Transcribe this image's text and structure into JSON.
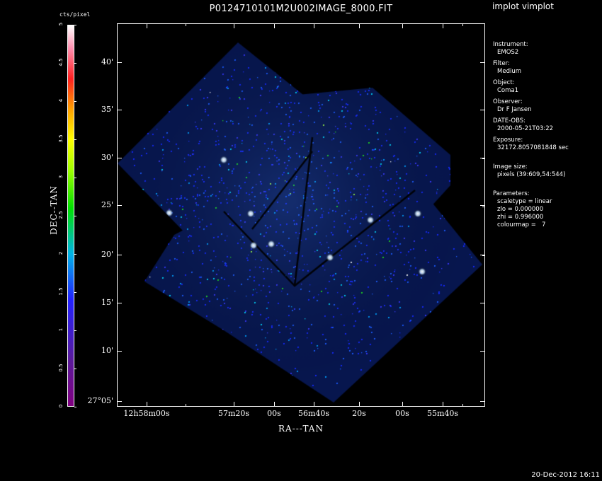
{
  "plot_title": "P0124710101M2U002IMAGE_8000.FIT",
  "app_title": "implot vimplot",
  "y_axis": {
    "title": "DEC--TAN",
    "ticks": [
      "40'",
      "35'",
      "30'",
      "25'",
      "20'",
      "15'",
      "10'",
      "27°05'"
    ]
  },
  "x_axis": {
    "title": "RA---TAN",
    "ticks": [
      "12h58m00s",
      "57m20s",
      "00s",
      "56m40s",
      "20s",
      "00s",
      "55m40s"
    ]
  },
  "colorbar": {
    "title": "cts/pixel",
    "ticks": [
      "0",
      "0.5",
      "1",
      "1.5",
      "2",
      "2.5",
      "3",
      "3.5",
      "4",
      "4.5",
      "5"
    ]
  },
  "info": {
    "instrument_label": "Instrument:",
    "instrument": "EMOS2",
    "filter_label": "Filter:",
    "filter": "Medium",
    "object_label": "Object:",
    "object": "Coma1",
    "observer_label": "Observer:",
    "observer": "Dr F Jansen",
    "date_label": "DATE-OBS:",
    "date": "2000-05-21T03:22",
    "exposure_label": "Exposure:",
    "exposure": "32172.8057081848 sec",
    "image_size_label": "Image size:",
    "image_size": "pixels (39:609,54:544)",
    "parameters_label": "Parameters:",
    "param_scaletype": "scaletype = linear",
    "param_zlo": "zlo = 0.000000",
    "param_zhi": "zhi = 0.996000",
    "param_colourmap": "colourmap =   7"
  },
  "timestamp": "20-Dec-2012 16:11"
}
